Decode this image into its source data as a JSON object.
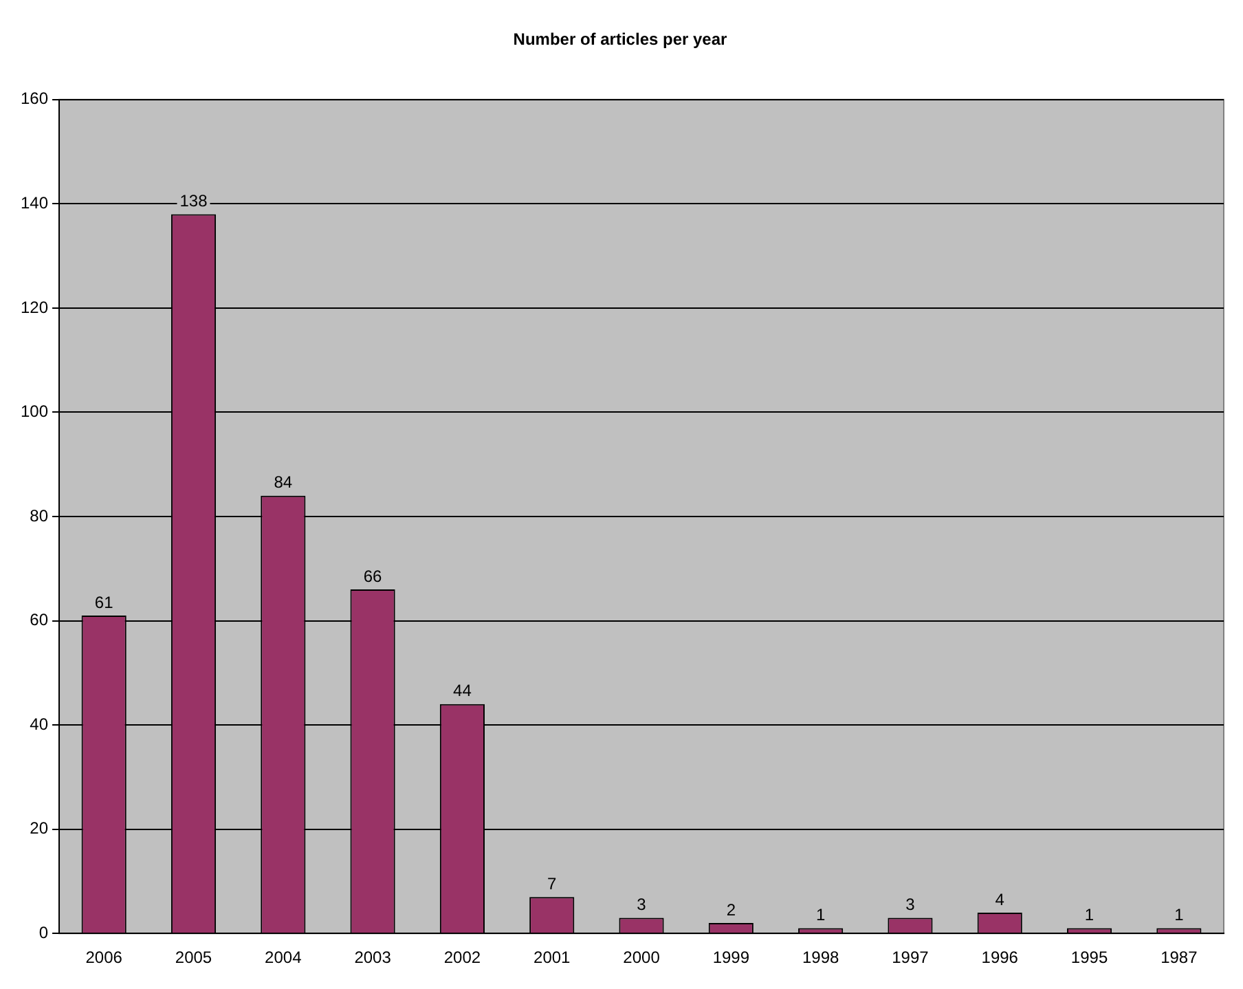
{
  "chart_data": {
    "type": "bar",
    "title": "Number of articles per year",
    "categories": [
      "2006",
      "2005",
      "2004",
      "2003",
      "2002",
      "2001",
      "2000",
      "1999",
      "1998",
      "1997",
      "1996",
      "1995",
      "1987"
    ],
    "values": [
      61,
      138,
      84,
      66,
      44,
      7,
      3,
      2,
      1,
      3,
      4,
      1,
      1
    ],
    "color": "#993366",
    "ylim": [
      0,
      160
    ],
    "yticks": [
      0,
      20,
      40,
      60,
      80,
      100,
      120,
      140,
      160
    ],
    "grid": "y",
    "data_labels": true,
    "legend": false
  }
}
